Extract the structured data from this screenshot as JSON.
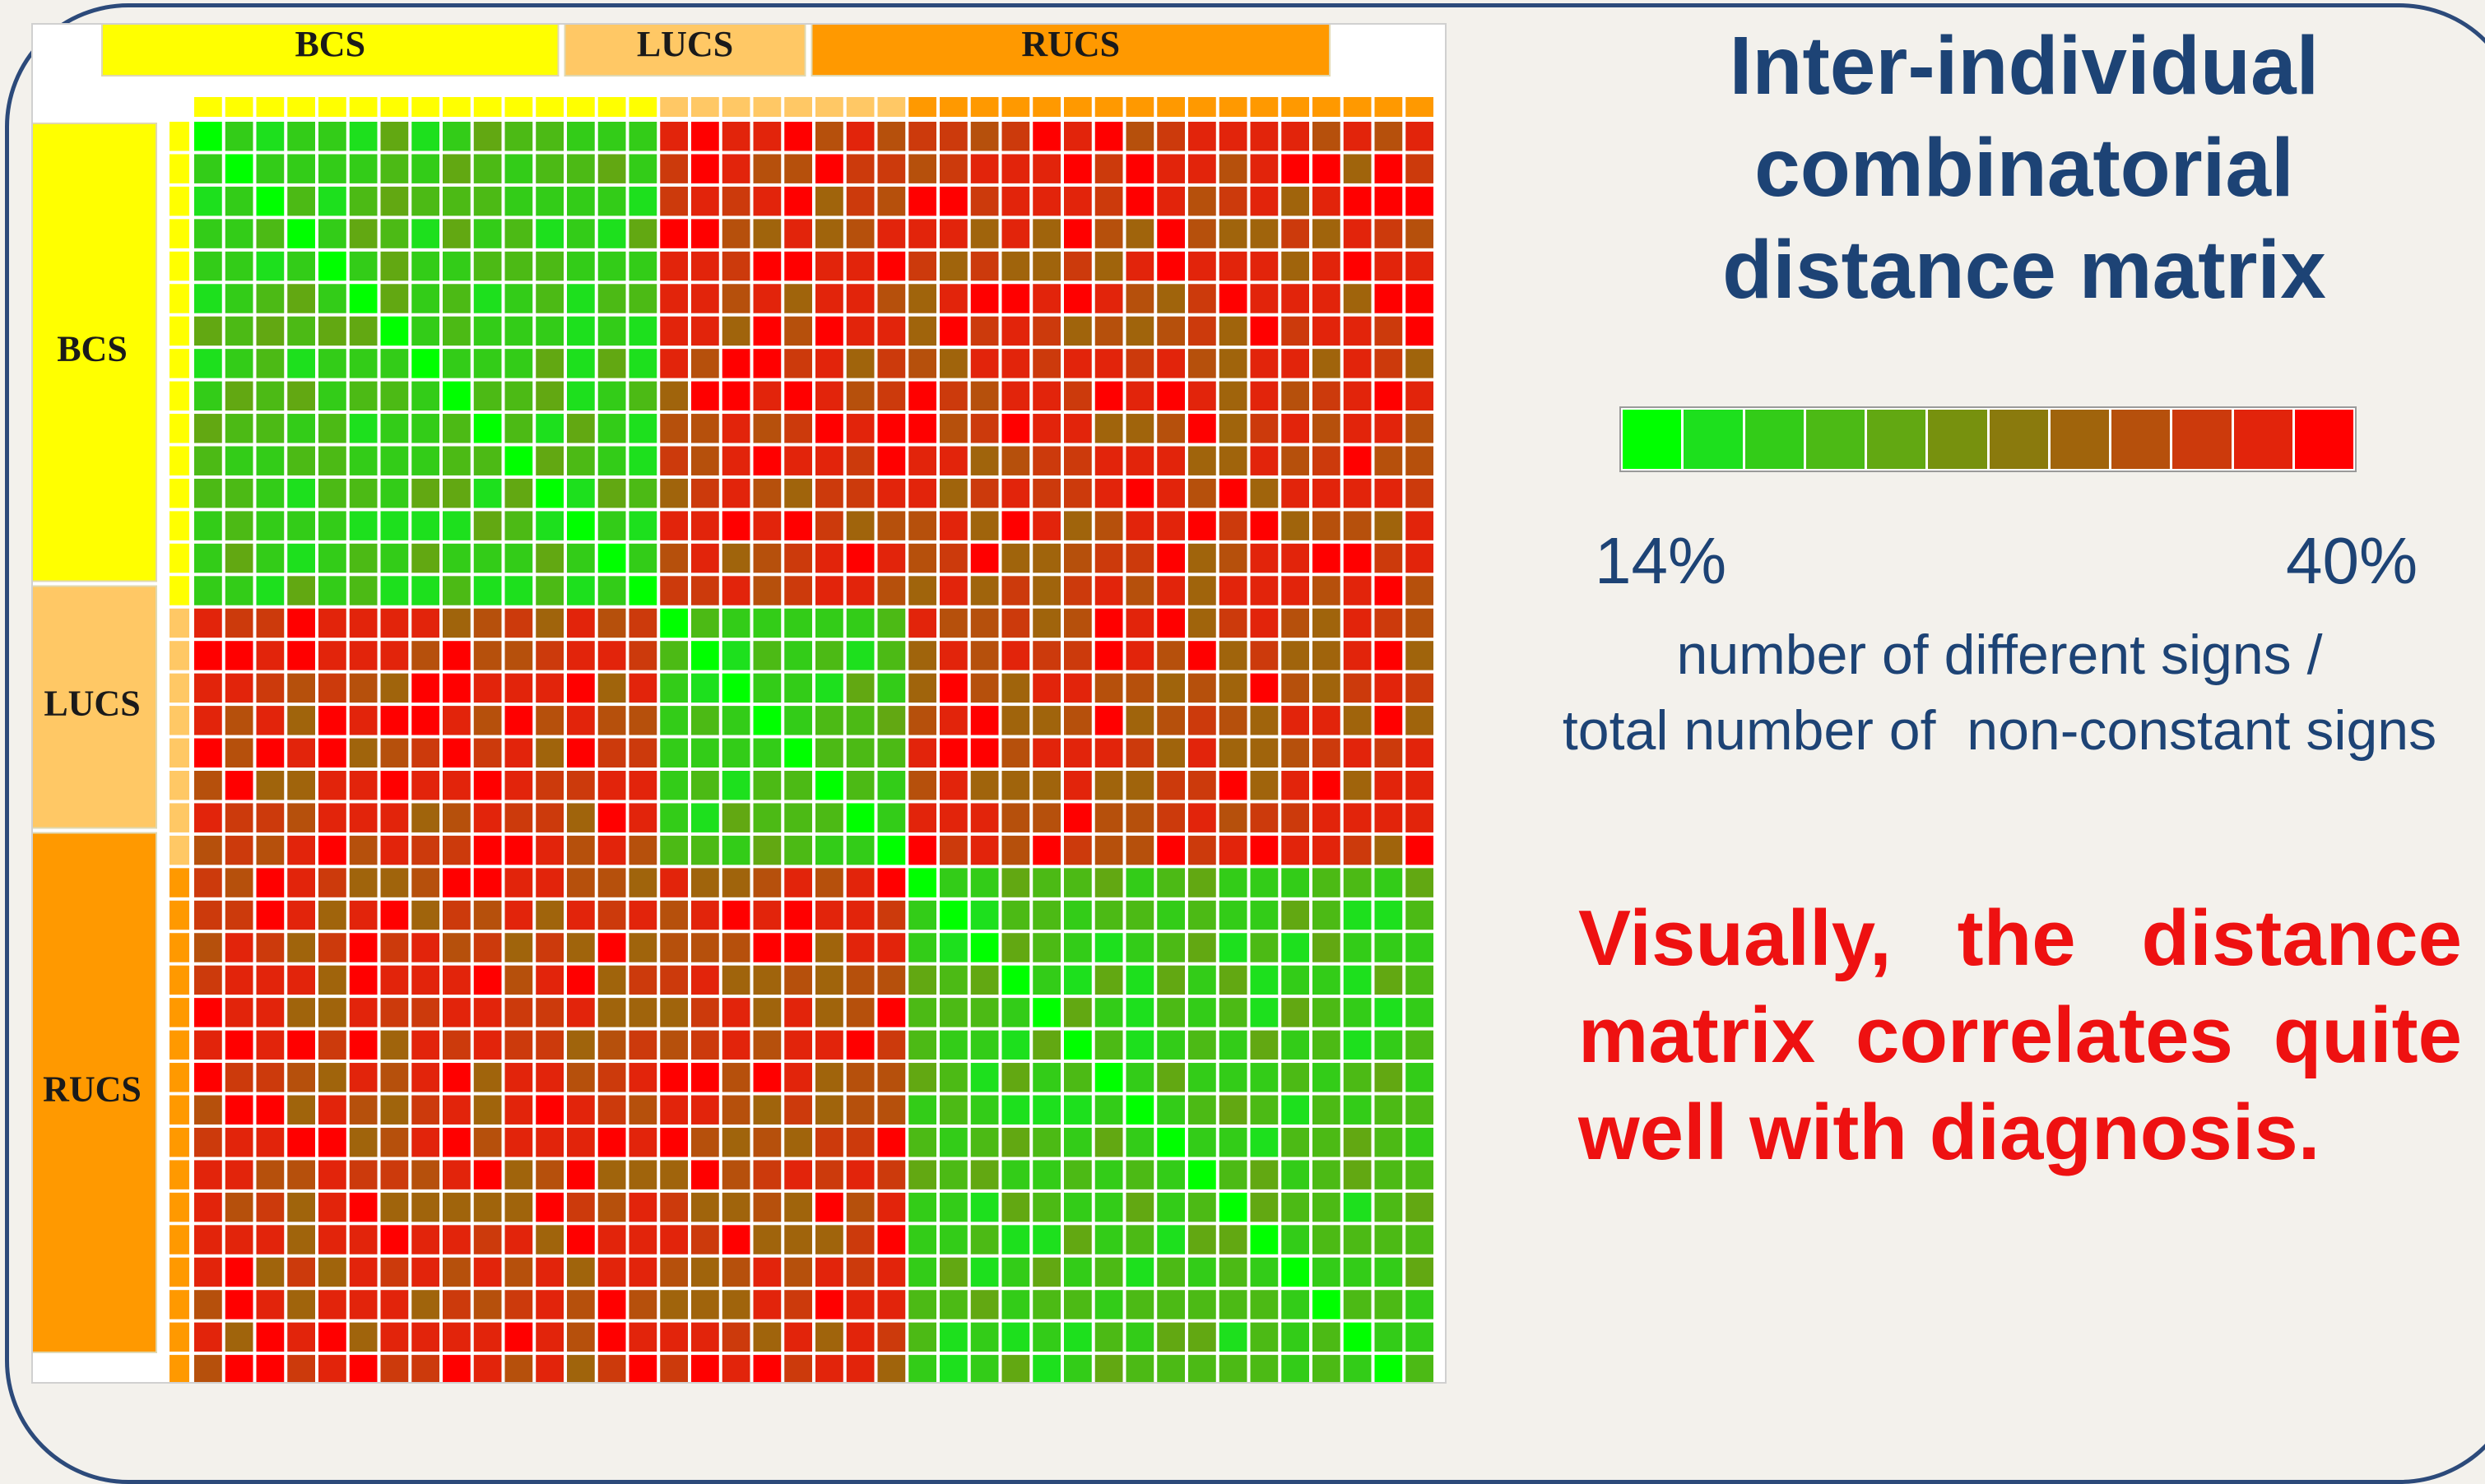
{
  "title": {
    "line1": "Inter-individual",
    "line2": "combinatorial",
    "line3": "distance matrix"
  },
  "legend": {
    "min_label": "14%",
    "max_label": "40%",
    "caption_line1": "number of different signs /",
    "caption_line2": "total number of  non-constant signs",
    "colors": [
      "#00ff00",
      "#1de01d",
      "#33cc18",
      "#4cba15",
      "#62a812",
      "#77910e",
      "#8a7a0d",
      "#a0640c",
      "#b6500c",
      "#cc3a0c",
      "#e2240b",
      "#ff0000"
    ]
  },
  "conclusion": "Visually, the distance matrix correlates quite well with diagnosis.",
  "chart_data": {
    "type": "heatmap",
    "value_range": [
      14,
      40
    ],
    "value_unit": "%",
    "groups": [
      {
        "name": "BCS",
        "count": 15,
        "color": "#ffff00"
      },
      {
        "name": "LUCS",
        "count": 8,
        "color": "#ffc865"
      },
      {
        "name": "RUCS",
        "count": 17,
        "color": "#ff9900"
      }
    ],
    "within_group_level": [
      1,
      2,
      2,
      3,
      3,
      4
    ],
    "between_group_level": [
      7,
      8,
      9,
      10,
      10,
      11
    ]
  }
}
